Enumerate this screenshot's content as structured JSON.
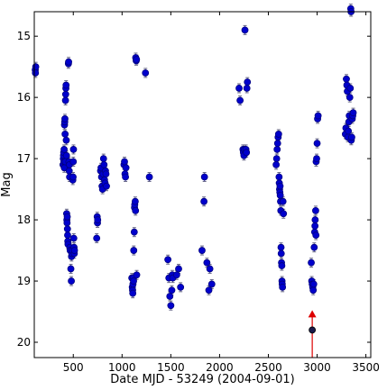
{
  "chart_data": {
    "type": "scatter",
    "title": "",
    "xlabel": "Date MJD - 53249 (2004-09-01)",
    "ylabel": "Mag",
    "xlim": [
      100,
      3550
    ],
    "ylim": [
      20.25,
      14.6
    ],
    "y_inverted": true,
    "xticks": [
      500,
      1000,
      1500,
      2000,
      2500,
      3000,
      3500
    ],
    "yticks": [
      15,
      16,
      17,
      18,
      19,
      20
    ],
    "grid": false,
    "legend": "none",
    "marker_fill": "#0000cc",
    "marker_edge": "#000080",
    "error_bar_color": "#6a6a8a",
    "highlight_color": "#dd0000",
    "series": [
      {
        "points": [
          [
            110,
            15.55
          ],
          [
            112,
            15.6
          ],
          [
            115,
            15.5
          ],
          [
            395,
            17.1
          ],
          [
            398,
            17.0
          ],
          [
            400,
            16.95
          ],
          [
            402,
            16.9
          ],
          [
            404,
            17.05
          ],
          [
            406,
            16.85
          ],
          [
            408,
            17.15
          ],
          [
            410,
            16.45
          ],
          [
            412,
            16.4
          ],
          [
            414,
            16.35
          ],
          [
            416,
            16.6
          ],
          [
            418,
            17.05
          ],
          [
            420,
            16.05
          ],
          [
            422,
            15.95
          ],
          [
            424,
            15.85
          ],
          [
            426,
            15.8
          ],
          [
            428,
            16.7
          ],
          [
            430,
            16.95
          ],
          [
            432,
            17.9
          ],
          [
            434,
            18.0
          ],
          [
            436,
            18.05
          ],
          [
            438,
            17.95
          ],
          [
            440,
            18.15
          ],
          [
            442,
            18.25
          ],
          [
            444,
            18.35
          ],
          [
            446,
            18.4
          ],
          [
            450,
            15.45
          ],
          [
            452,
            15.42
          ],
          [
            455,
            17.05
          ],
          [
            458,
            17.2
          ],
          [
            460,
            17.1
          ],
          [
            462,
            17.3
          ],
          [
            465,
            18.45
          ],
          [
            468,
            18.5
          ],
          [
            475,
            18.8
          ],
          [
            480,
            19.0
          ],
          [
            482,
            18.6
          ],
          [
            485,
            18.55
          ],
          [
            488,
            18.5
          ],
          [
            495,
            17.35
          ],
          [
            498,
            17.3
          ],
          [
            500,
            17.05
          ],
          [
            502,
            16.85
          ],
          [
            505,
            18.3
          ],
          [
            508,
            18.45
          ],
          [
            510,
            18.55
          ],
          [
            512,
            18.5
          ],
          [
            740,
            18.3
          ],
          [
            745,
            17.95
          ],
          [
            748,
            18.05
          ],
          [
            750,
            18.0
          ],
          [
            780,
            17.2
          ],
          [
            785,
            17.15
          ],
          [
            790,
            17.3
          ],
          [
            795,
            17.45
          ],
          [
            800,
            17.5
          ],
          [
            805,
            17.25
          ],
          [
            810,
            17.0
          ],
          [
            815,
            17.1
          ],
          [
            820,
            17.35
          ],
          [
            825,
            17.4
          ],
          [
            830,
            17.2
          ],
          [
            835,
            17.25
          ],
          [
            840,
            17.45
          ],
          [
            1020,
            17.1
          ],
          [
            1025,
            17.05
          ],
          [
            1030,
            17.25
          ],
          [
            1035,
            17.3
          ],
          [
            1040,
            17.15
          ],
          [
            1100,
            18.95
          ],
          [
            1105,
            19.1
          ],
          [
            1108,
            19.15
          ],
          [
            1110,
            19.2
          ],
          [
            1112,
            19.05
          ],
          [
            1115,
            18.95
          ],
          [
            1118,
            19.0
          ],
          [
            1120,
            18.5
          ],
          [
            1125,
            18.2
          ],
          [
            1128,
            17.8
          ],
          [
            1130,
            17.75
          ],
          [
            1135,
            17.7
          ],
          [
            1138,
            17.85
          ],
          [
            1140,
            15.35
          ],
          [
            1145,
            15.4
          ],
          [
            1148,
            15.38
          ],
          [
            1150,
            18.9
          ],
          [
            1240,
            15.6
          ],
          [
            1280,
            17.3
          ],
          [
            1470,
            18.65
          ],
          [
            1480,
            18.95
          ],
          [
            1490,
            19.25
          ],
          [
            1500,
            19.4
          ],
          [
            1510,
            19.15
          ],
          [
            1515,
            18.9
          ],
          [
            1520,
            18.95
          ],
          [
            1560,
            18.9
          ],
          [
            1580,
            18.8
          ],
          [
            1600,
            19.1
          ],
          [
            1820,
            18.5
          ],
          [
            1840,
            17.7
          ],
          [
            1845,
            17.3
          ],
          [
            1870,
            18.7
          ],
          [
            1890,
            19.15
          ],
          [
            1900,
            18.8
          ],
          [
            1920,
            19.05
          ],
          [
            2200,
            15.85
          ],
          [
            2210,
            16.05
          ],
          [
            2240,
            16.85
          ],
          [
            2245,
            16.9
          ],
          [
            2250,
            16.95
          ],
          [
            2255,
            16.85
          ],
          [
            2260,
            14.9
          ],
          [
            2270,
            16.85
          ],
          [
            2275,
            16.9
          ],
          [
            2280,
            15.85
          ],
          [
            2285,
            15.75
          ],
          [
            2580,
            17.1
          ],
          [
            2585,
            17.0
          ],
          [
            2590,
            16.85
          ],
          [
            2595,
            16.75
          ],
          [
            2600,
            16.65
          ],
          [
            2605,
            16.6
          ],
          [
            2610,
            17.3
          ],
          [
            2612,
            17.4
          ],
          [
            2615,
            17.5
          ],
          [
            2618,
            17.55
          ],
          [
            2620,
            17.45
          ],
          [
            2622,
            17.6
          ],
          [
            2625,
            17.7
          ],
          [
            2628,
            17.85
          ],
          [
            2630,
            18.45
          ],
          [
            2632,
            18.55
          ],
          [
            2635,
            18.7
          ],
          [
            2638,
            18.75
          ],
          [
            2640,
            19.0
          ],
          [
            2642,
            19.05
          ],
          [
            2645,
            19.1
          ],
          [
            2650,
            17.7
          ],
          [
            2655,
            17.9
          ],
          [
            2940,
            18.7
          ],
          [
            2945,
            19.0
          ],
          [
            2950,
            19.05
          ],
          [
            2955,
            19.1
          ],
          [
            2960,
            19.15
          ],
          [
            2965,
            19.05
          ],
          [
            2970,
            18.45
          ],
          [
            2975,
            18.2
          ],
          [
            2978,
            18.1
          ],
          [
            2980,
            18.0
          ],
          [
            2985,
            17.85
          ],
          [
            2988,
            18.25
          ],
          [
            2990,
            17.05
          ],
          [
            2995,
            17.0
          ],
          [
            3000,
            16.75
          ],
          [
            3005,
            16.35
          ],
          [
            3010,
            16.3
          ],
          [
            3290,
            16.6
          ],
          [
            3295,
            16.5
          ],
          [
            3300,
            15.7
          ],
          [
            3305,
            15.8
          ],
          [
            3310,
            15.9
          ],
          [
            3315,
            16.65
          ],
          [
            3320,
            16.55
          ],
          [
            3325,
            16.4
          ],
          [
            3330,
            16.3
          ],
          [
            3335,
            16.0
          ],
          [
            3340,
            15.85
          ],
          [
            3345,
            14.55
          ],
          [
            3348,
            14.6
          ],
          [
            3350,
            16.7
          ],
          [
            3355,
            16.65
          ],
          [
            3360,
            16.35
          ],
          [
            3365,
            16.3
          ],
          [
            3370,
            16.25
          ]
        ]
      }
    ],
    "highlight": {
      "x": 2950,
      "y_low": 19.8,
      "y_high": 19.55,
      "marker": "triangle-up",
      "bottom_point": [
        2950,
        19.8
      ]
    }
  }
}
